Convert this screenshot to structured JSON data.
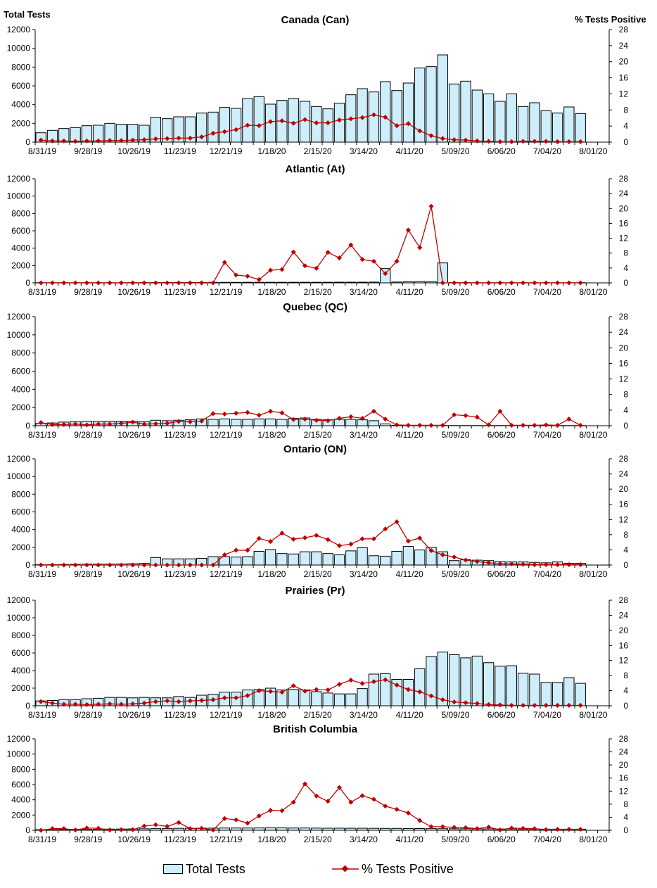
{
  "axis_labels": {
    "left": "Total Tests",
    "right": "% Tests Positive"
  },
  "legend": {
    "bar_label": "Total Tests",
    "line_label": "% Tests Positive"
  },
  "colors": {
    "bar_fill": "#cdeefa",
    "bar_stroke": "#000000",
    "line": "#c00000"
  },
  "chart_data": [
    {
      "type": "bar",
      "title": "Canada (Can)",
      "x_tick_labels": [
        "8/31/19",
        "9/28/19",
        "10/26/19",
        "11/23/19",
        "12/21/19",
        "1/18/20",
        "2/15/20",
        "3/14/20",
        "4/11/20",
        "5/09/20",
        "6/06/20",
        "7/04/20",
        "8/01/20"
      ],
      "ylim": [
        0,
        12000
      ],
      "y_ticks": [
        0,
        2000,
        4000,
        6000,
        8000,
        10000,
        12000
      ],
      "y2lim": [
        0,
        28
      ],
      "y2_ticks": [
        0,
        4,
        8,
        12,
        16,
        20,
        24,
        28
      ],
      "series": [
        {
          "name": "Total Tests",
          "values": [
            1000,
            1250,
            1450,
            1550,
            1750,
            1800,
            2000,
            1900,
            1900,
            1800,
            2650,
            2500,
            2700,
            2700,
            3100,
            3200,
            3700,
            3600,
            4650,
            4850,
            4050,
            4450,
            4650,
            4350,
            3800,
            3550,
            4150,
            5050,
            5700,
            5350,
            6450,
            5500,
            6300,
            7900,
            8050,
            9300,
            6200,
            6500,
            5550,
            5150,
            4350,
            5150,
            3800,
            4200,
            3350,
            3100,
            3750,
            3050
          ]
        },
        {
          "name": "% Tests Positive",
          "values": [
            0.5,
            0.3,
            0.3,
            0.2,
            0.3,
            0.3,
            0.4,
            0.4,
            0.5,
            0.6,
            0.8,
            0.9,
            1.0,
            1.0,
            1.3,
            2.2,
            2.6,
            3.1,
            4.2,
            4.1,
            5.1,
            5.3,
            4.7,
            5.6,
            4.8,
            4.8,
            5.5,
            5.8,
            6.1,
            6.8,
            6.2,
            4.1,
            4.6,
            2.8,
            1.6,
            0.9,
            0.6,
            0.5,
            0.3,
            0.2,
            0.1,
            0.1,
            0.2,
            0.2,
            0.2,
            0.1,
            0.1,
            0.1
          ]
        }
      ]
    },
    {
      "type": "bar",
      "title": "Atlantic (At)",
      "x_tick_labels": [
        "8/31/19",
        "9/28/19",
        "10/26/19",
        "11/23/19",
        "12/21/19",
        "1/18/20",
        "2/15/20",
        "3/14/20",
        "4/11/20",
        "5/09/20",
        "6/06/20",
        "7/04/20",
        "8/01/20"
      ],
      "ylim": [
        0,
        12000
      ],
      "y_ticks": [
        0,
        2000,
        4000,
        6000,
        8000,
        10000,
        12000
      ],
      "y2lim": [
        0,
        28
      ],
      "y2_ticks": [
        0,
        4,
        8,
        12,
        16,
        20,
        24,
        28
      ],
      "series": [
        {
          "name": "Total Tests",
          "values": [
            20,
            20,
            20,
            20,
            20,
            20,
            20,
            20,
            30,
            30,
            40,
            40,
            50,
            50,
            50,
            60,
            60,
            60,
            70,
            70,
            70,
            70,
            70,
            70,
            70,
            70,
            80,
            80,
            80,
            90,
            1650,
            100,
            120,
            150,
            120,
            2300,
            30,
            30,
            20,
            20,
            20,
            20,
            20,
            20,
            20,
            20,
            20,
            20
          ]
        },
        {
          "name": "% Tests Positive",
          "values": [
            0,
            0,
            0,
            0,
            0,
            0,
            0,
            0,
            0,
            0,
            0,
            0,
            0,
            0,
            0,
            0,
            5.5,
            2.1,
            1.8,
            0.9,
            3.4,
            3.6,
            8.3,
            4.6,
            3.9,
            8.2,
            6.7,
            10.2,
            6.3,
            5.8,
            2.5,
            5.8,
            14.2,
            9.5,
            20.6,
            0,
            0,
            0,
            0,
            0,
            0,
            0,
            0,
            0,
            0,
            0,
            0,
            0
          ]
        }
      ]
    },
    {
      "type": "bar",
      "title": "Quebec (QC)",
      "x_tick_labels": [
        "8/31/19",
        "9/28/19",
        "10/26/19",
        "11/23/19",
        "12/21/19",
        "1/18/20",
        "2/15/20",
        "3/14/20",
        "4/11/20",
        "5/09/20",
        "6/06/20",
        "7/04/20",
        "8/01/20"
      ],
      "ylim": [
        0,
        12000
      ],
      "y_ticks": [
        0,
        2000,
        4000,
        6000,
        8000,
        10000,
        12000
      ],
      "y2lim": [
        0,
        28
      ],
      "y2_ticks": [
        0,
        4,
        8,
        12,
        16,
        20,
        24,
        28
      ],
      "series": [
        {
          "name": "Total Tests",
          "values": [
            250,
            300,
            400,
            450,
            500,
            500,
            500,
            500,
            500,
            450,
            600,
            550,
            600,
            650,
            750,
            700,
            750,
            700,
            700,
            750,
            750,
            700,
            800,
            850,
            700,
            650,
            700,
            700,
            650,
            550,
            200,
            50,
            20,
            20,
            20,
            20,
            20,
            20,
            20,
            20,
            20,
            20,
            20,
            20,
            20,
            20,
            20,
            20
          ]
        },
        {
          "name": "% Tests Positive",
          "values": [
            0.8,
            0.3,
            0.3,
            0.4,
            0.2,
            0.4,
            0.4,
            0.6,
            0.9,
            0.4,
            0.5,
            0.6,
            1.1,
            1.0,
            1.2,
            3.1,
            3.0,
            3.2,
            3.4,
            2.7,
            3.7,
            3.3,
            1.6,
            1.7,
            1.4,
            1.3,
            1.9,
            2.3,
            1.9,
            3.7,
            1.7,
            0.2,
            0.1,
            0.1,
            0.1,
            0.1,
            2.8,
            2.6,
            2.2,
            0.2,
            3.7,
            0.1,
            0.1,
            0.1,
            0.2,
            0.1,
            1.7,
            0.1
          ]
        }
      ]
    },
    {
      "type": "bar",
      "title": "Ontario (ON)",
      "x_tick_labels": [
        "8/31/19",
        "9/28/19",
        "10/26/19",
        "11/23/19",
        "12/21/19",
        "1/18/20",
        "2/15/20",
        "3/14/20",
        "4/11/20",
        "5/09/20",
        "6/06/20",
        "7/04/20",
        "8/01/20"
      ],
      "ylim": [
        0,
        12000
      ],
      "y_ticks": [
        0,
        2000,
        4000,
        6000,
        8000,
        10000,
        12000
      ],
      "y2lim": [
        0,
        28
      ],
      "y2_ticks": [
        0,
        4,
        8,
        12,
        16,
        20,
        24,
        28
      ],
      "series": [
        {
          "name": "Total Tests",
          "values": [
            30,
            40,
            60,
            80,
            100,
            100,
            100,
            120,
            150,
            200,
            850,
            700,
            700,
            700,
            750,
            950,
            950,
            900,
            950,
            1550,
            1750,
            1300,
            1250,
            1500,
            1500,
            1300,
            1150,
            1600,
            1950,
            1050,
            1000,
            1550,
            2100,
            1700,
            2000,
            1500,
            500,
            600,
            550,
            500,
            400,
            350,
            350,
            300,
            250,
            350,
            200,
            200
          ]
        },
        {
          "name": "% Tests Positive",
          "values": [
            0,
            0,
            0,
            0,
            0,
            0,
            0,
            0,
            0,
            0,
            0,
            0,
            0,
            0,
            0,
            0,
            2.7,
            3.9,
            3.9,
            7.0,
            6.2,
            8.4,
            6.8,
            7.2,
            7.8,
            6.7,
            5.1,
            5.5,
            6.9,
            6.9,
            9.5,
            11.4,
            6.3,
            7.1,
            3.8,
            2.7,
            2.1,
            1.3,
            0.9,
            0.6,
            0.3,
            0.3,
            0.2,
            0.1,
            0.1,
            0.1,
            0.1,
            0.1
          ]
        }
      ]
    },
    {
      "type": "bar",
      "title": "Prairies (Pr)",
      "x_tick_labels": [
        "8/31/19",
        "9/28/19",
        "10/26/19",
        "11/23/19",
        "12/21/19",
        "1/18/20",
        "2/15/20",
        "3/14/20",
        "4/11/20",
        "5/09/20",
        "6/06/20",
        "7/04/20",
        "8/01/20"
      ],
      "ylim": [
        0,
        12000
      ],
      "y_ticks": [
        0,
        2000,
        4000,
        6000,
        8000,
        10000,
        12000
      ],
      "y2lim": [
        0,
        28
      ],
      "y2_ticks": [
        0,
        4,
        8,
        12,
        16,
        20,
        24,
        28
      ],
      "series": [
        {
          "name": "Total Tests",
          "values": [
            550,
            600,
            700,
            700,
            800,
            850,
            950,
            950,
            900,
            950,
            900,
            900,
            1050,
            950,
            1200,
            1300,
            1550,
            1550,
            1800,
            1850,
            2000,
            1800,
            1850,
            1800,
            1600,
            1450,
            1350,
            1350,
            1950,
            3600,
            3650,
            3000,
            3000,
            4200,
            5600,
            6100,
            5800,
            5450,
            5650,
            4900,
            4500,
            4550,
            3700,
            3600,
            2650,
            2650,
            3200,
            2550
          ]
        },
        {
          "name": "% Tests Positive",
          "values": [
            1.1,
            0.7,
            0.4,
            0.4,
            0.3,
            0.4,
            0.5,
            0.4,
            0.5,
            0.7,
            1.1,
            1.3,
            1.1,
            1.3,
            1.4,
            1.6,
            2.1,
            2.1,
            2.7,
            4.0,
            3.8,
            3.6,
            5.3,
            3.9,
            4.3,
            4.2,
            5.7,
            6.8,
            5.9,
            6.4,
            6.9,
            5.5,
            4.3,
            3.7,
            2.6,
            1.6,
            1.0,
            0.8,
            0.6,
            0.3,
            0.2,
            0.1,
            0.1,
            0.1,
            0.1,
            0.1,
            0.1,
            0.1
          ]
        }
      ]
    },
    {
      "type": "bar",
      "title": "British Columbia",
      "x_tick_labels": [
        "8/31/19",
        "9/28/19",
        "10/26/19",
        "11/23/19",
        "12/21/19",
        "1/18/20",
        "2/15/20",
        "3/14/20",
        "4/11/20",
        "5/09/20",
        "6/06/20",
        "7/04/20",
        "8/01/20"
      ],
      "ylim": [
        0,
        12000
      ],
      "y_ticks": [
        0,
        2000,
        4000,
        6000,
        8000,
        10000,
        12000
      ],
      "y2lim": [
        0,
        28
      ],
      "y2_ticks": [
        0,
        4,
        8,
        12,
        16,
        20,
        24,
        28
      ],
      "series": [
        {
          "name": "Total Tests",
          "values": [
            80,
            80,
            100,
            120,
            130,
            140,
            160,
            170,
            180,
            200,
            220,
            240,
            260,
            270,
            280,
            290,
            300,
            300,
            300,
            310,
            320,
            320,
            300,
            300,
            290,
            280,
            280,
            270,
            270,
            260,
            250,
            250,
            240,
            230,
            220,
            210,
            200,
            200,
            190,
            180,
            170,
            170,
            160,
            160,
            150,
            150,
            150,
            150
          ]
        },
        {
          "name": "% Tests Positive",
          "values": [
            0,
            0.5,
            0.5,
            0.1,
            0.7,
            0.6,
            0.1,
            0.2,
            0.2,
            1.3,
            1.7,
            1.2,
            2.4,
            0.5,
            0.6,
            0.1,
            3.6,
            3.2,
            2.2,
            4.4,
            6.1,
            6.0,
            8.6,
            14.2,
            10.5,
            8.9,
            13.1,
            8.6,
            10.6,
            9.5,
            7.4,
            6.4,
            5.3,
            3.0,
            1.1,
            1.1,
            0.9,
            0.8,
            0.5,
            1.0,
            0.1,
            0.7,
            0.6,
            0.5,
            0.2,
            0.3,
            0.3,
            0.3
          ]
        }
      ]
    }
  ]
}
